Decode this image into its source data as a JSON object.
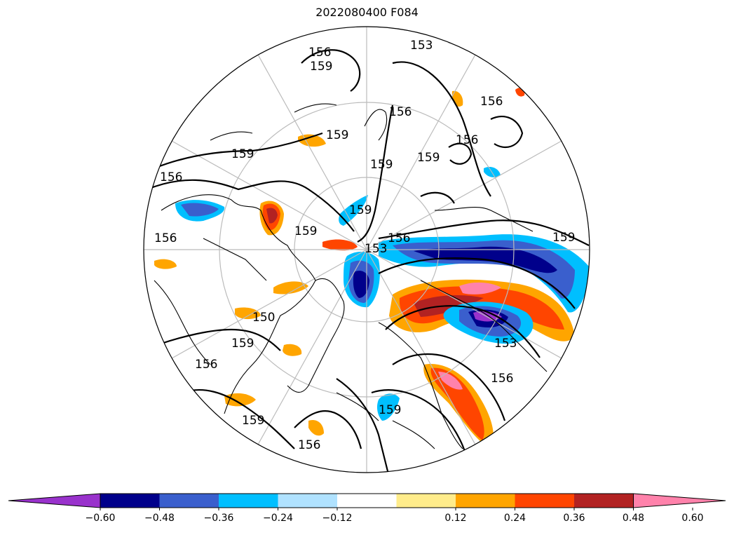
{
  "title": "2022080400 F084",
  "colorbar": {
    "colors": [
      "#9932cc",
      "#00008b",
      "#3a5fcd",
      "#00bfff",
      "#b0e2ff",
      "#ffffff",
      "#ffec8b",
      "#ffa500",
      "#ff4500",
      "#b22222",
      "#ff82ab"
    ],
    "ticks": [
      "−0.60",
      "−0.48",
      "−0.36",
      "−0.24",
      "−0.12",
      "0.12",
      "0.24",
      "0.36",
      "0.48",
      "0.60"
    ]
  },
  "contour_labels": [
    "156",
    "159",
    "153",
    "156",
    "159",
    "156",
    "159",
    "156",
    "159",
    "156",
    "159",
    "153",
    "156",
    "159",
    "150",
    "153",
    "156",
    "156",
    "159",
    "159",
    "156",
    "159",
    "159",
    "156",
    "159"
  ]
}
